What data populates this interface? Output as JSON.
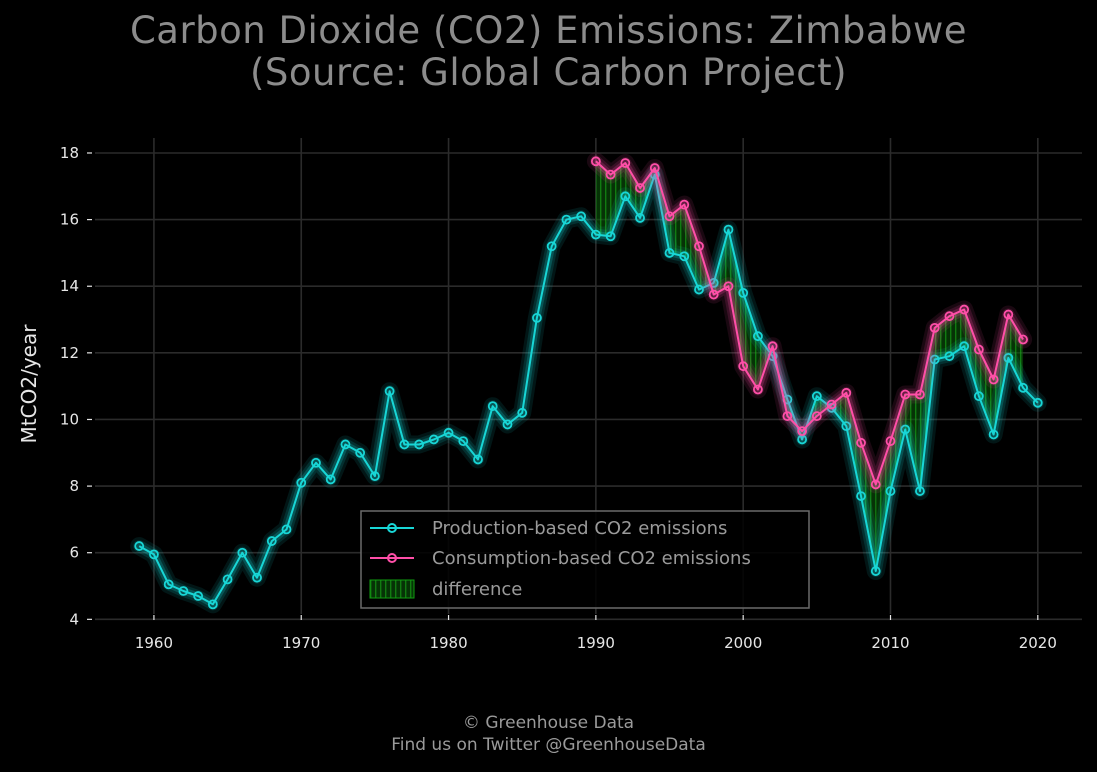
{
  "chart_data": {
    "type": "line",
    "title": [
      "Carbon Dioxide (CO2) Emissions: Zimbabwe",
      "(Source: Global Carbon Project)"
    ],
    "xlabel": "",
    "ylabel": "MtCO2/year",
    "xlim": [
      1956,
      2023
    ],
    "ylim": [
      3.8,
      18.45
    ],
    "xticks": [
      1960,
      1970,
      1980,
      1990,
      2000,
      2010,
      2020
    ],
    "yticks": [
      4,
      6,
      8,
      10,
      12,
      14,
      16,
      18
    ],
    "grid": true,
    "legend_position": "lower-center",
    "series": [
      {
        "name": "Production-based CO2 emissions",
        "color": "#18d6d6",
        "x": [
          1959,
          1960,
          1961,
          1962,
          1963,
          1964,
          1965,
          1966,
          1967,
          1968,
          1969,
          1970,
          1971,
          1972,
          1973,
          1974,
          1975,
          1976,
          1977,
          1978,
          1979,
          1980,
          1981,
          1982,
          1983,
          1984,
          1985,
          1986,
          1987,
          1988,
          1989,
          1990,
          1991,
          1992,
          1993,
          1994,
          1995,
          1996,
          1997,
          1998,
          1999,
          2000,
          2001,
          2002,
          2003,
          2004,
          2005,
          2006,
          2007,
          2008,
          2009,
          2010,
          2011,
          2012,
          2013,
          2014,
          2015,
          2016,
          2017,
          2018,
          2019,
          2020
        ],
        "values": [
          6.2,
          5.95,
          5.05,
          4.85,
          4.7,
          4.45,
          5.2,
          6.0,
          5.25,
          6.35,
          6.7,
          8.1,
          8.7,
          8.2,
          9.25,
          9.0,
          8.3,
          10.85,
          9.25,
          9.25,
          9.4,
          9.6,
          9.35,
          8.8,
          10.4,
          9.85,
          10.2,
          13.05,
          15.2,
          16.0,
          16.1,
          15.55,
          15.5,
          16.7,
          16.05,
          17.35,
          15.0,
          14.9,
          13.9,
          14.1,
          15.7,
          13.8,
          12.5,
          11.9,
          10.6,
          9.4,
          10.7,
          10.35,
          9.8,
          7.7,
          5.45,
          7.85,
          9.7,
          7.85,
          11.8,
          11.9,
          12.2,
          10.7,
          9.55,
          11.85,
          10.95,
          10.5
        ]
      },
      {
        "name": "Consumption-based CO2 emissions",
        "color": "#ff4fa8",
        "x": [
          1990,
          1991,
          1992,
          1993,
          1994,
          1995,
          1996,
          1997,
          1998,
          1999,
          2000,
          2001,
          2002,
          2003,
          2004,
          2005,
          2006,
          2007,
          2008,
          2009,
          2010,
          2011,
          2012,
          2013,
          2014,
          2015,
          2016,
          2017,
          2018,
          2019
        ],
        "values": [
          17.75,
          17.35,
          17.7,
          16.95,
          17.55,
          16.1,
          16.45,
          15.2,
          13.75,
          14.0,
          11.6,
          10.9,
          12.2,
          10.1,
          9.65,
          10.1,
          10.45,
          10.8,
          9.3,
          8.05,
          9.35,
          10.75,
          10.75,
          12.75,
          13.1,
          13.3,
          12.1,
          11.2,
          13.15,
          12.4
        ]
      }
    ],
    "fill": {
      "name": "difference",
      "color": "#0f9e0f"
    }
  },
  "footer": {
    "line1": "© Greenhouse Data",
    "line2": "Find us on Twitter @GreenhouseData"
  }
}
